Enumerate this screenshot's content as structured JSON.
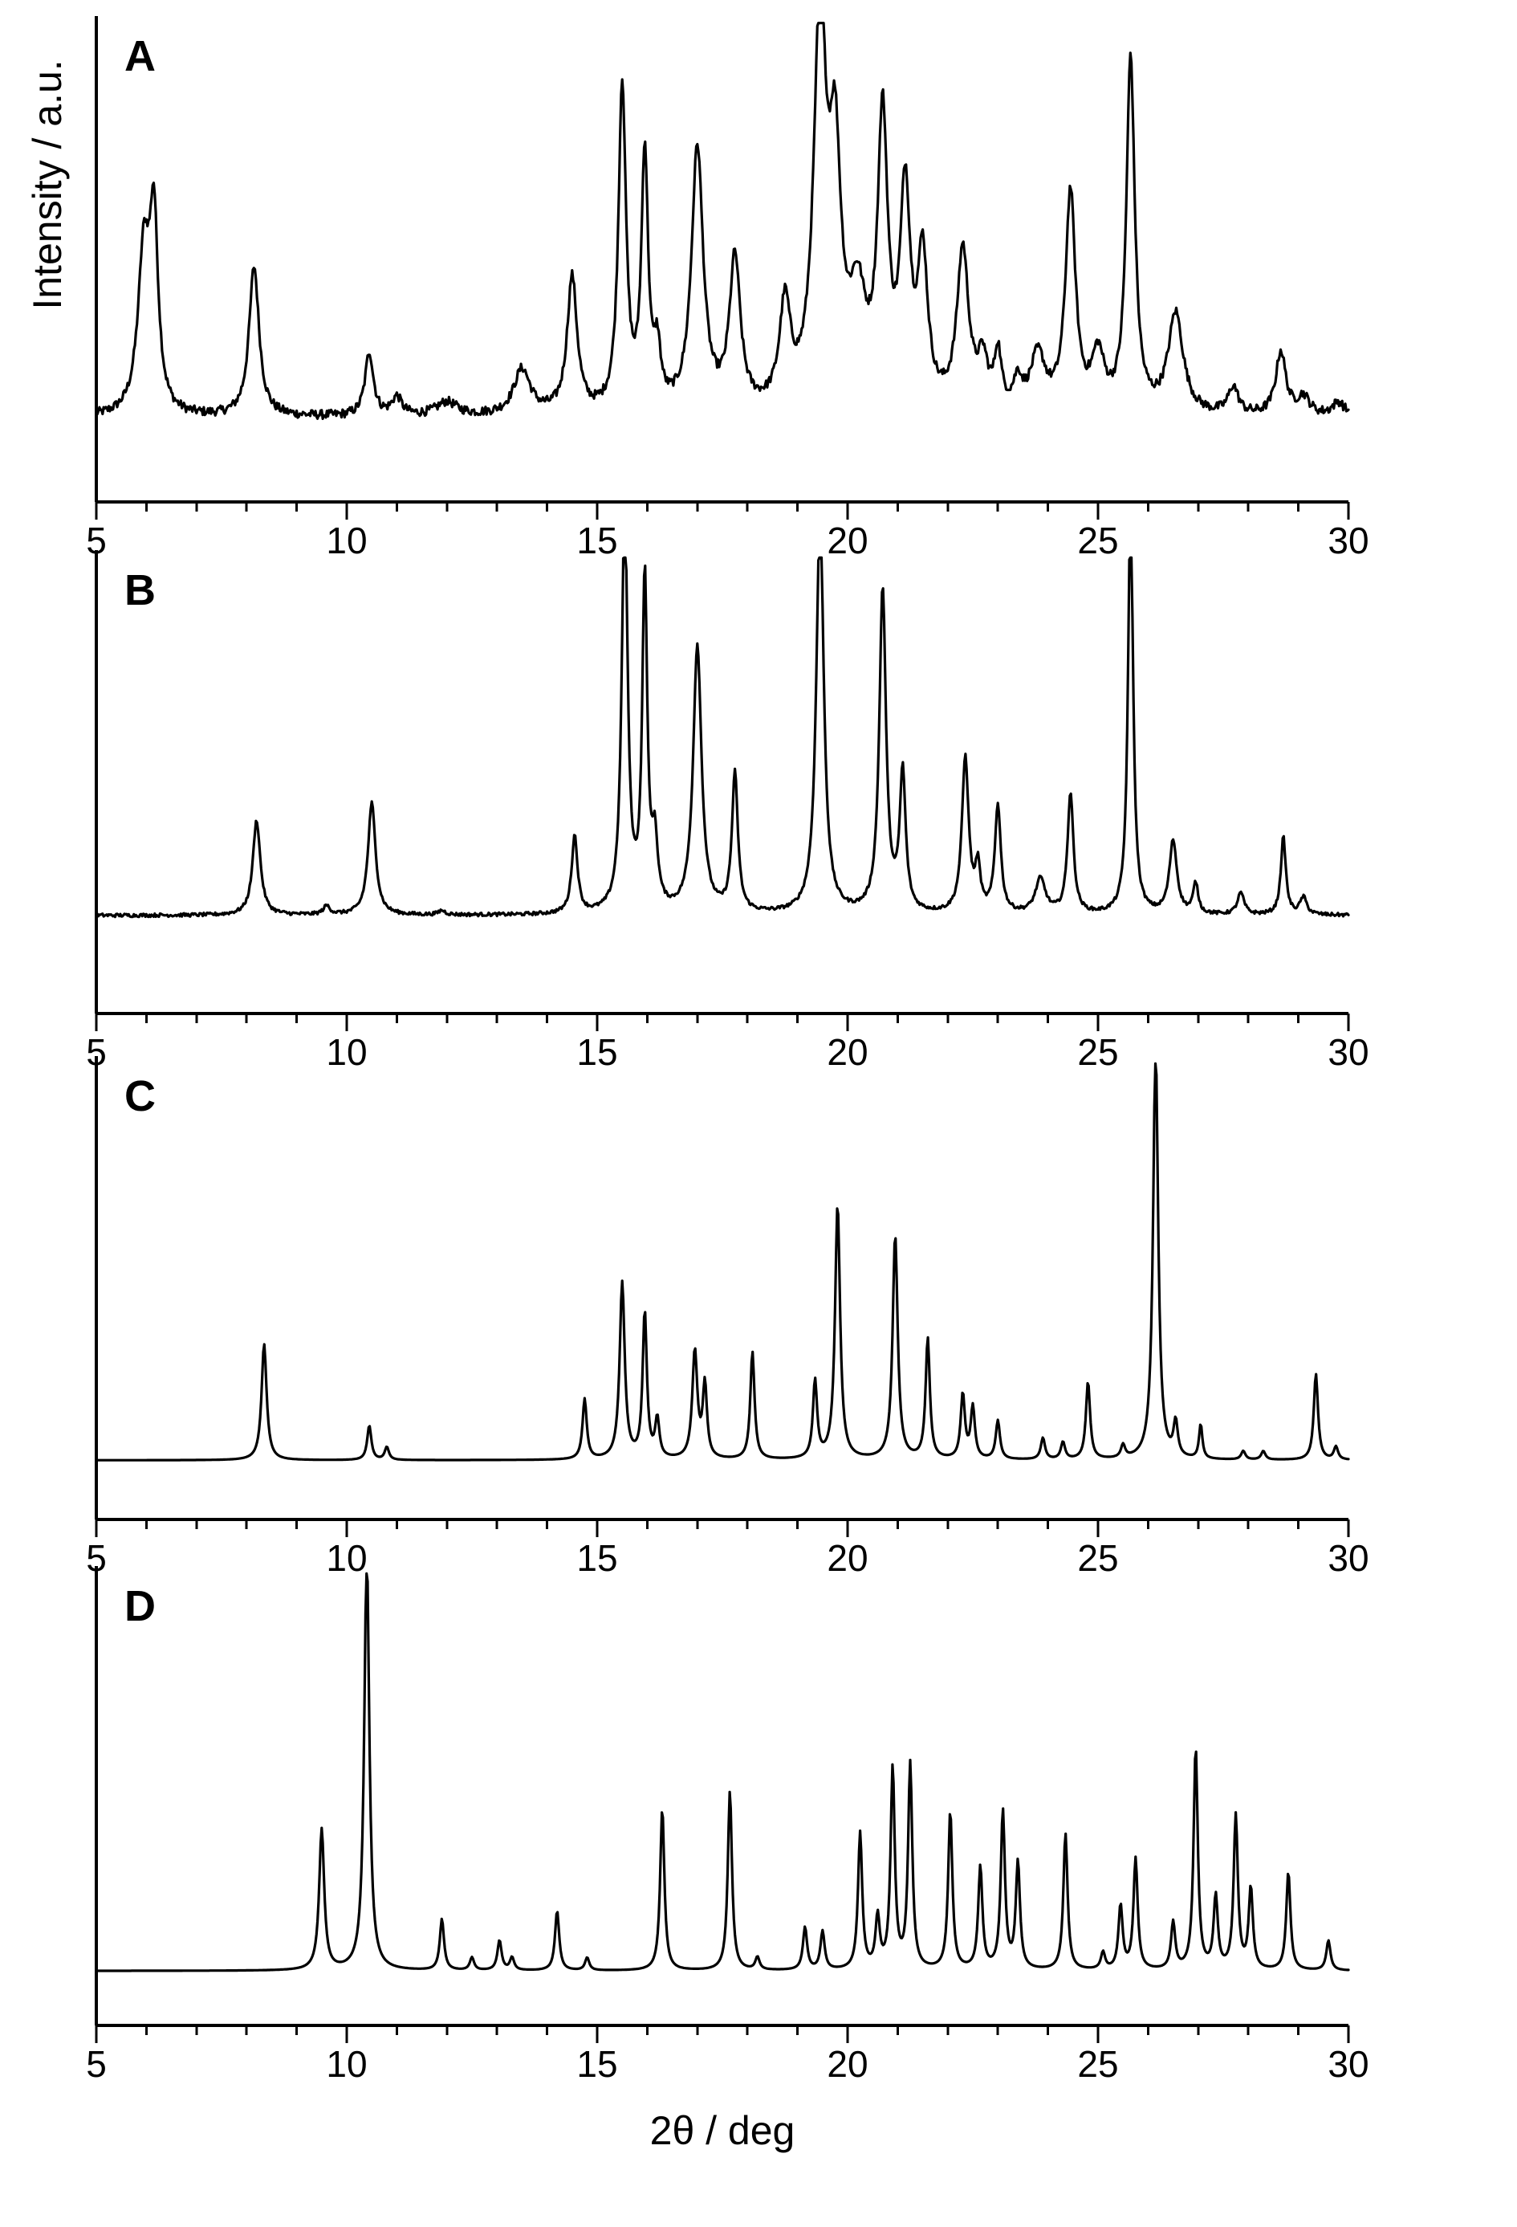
{
  "chart_data": [
    {
      "type": "line",
      "panel": "A",
      "xlim": [
        5,
        30
      ],
      "xticks": [
        5,
        10,
        15,
        20,
        25,
        30
      ],
      "xlabel": "",
      "ylabel": "Intensity / a.u.",
      "baseline": 0.15,
      "noise": 0.01,
      "peaks": [
        {
          "x": 5.95,
          "h": 0.35,
          "w": 0.14
        },
        {
          "x": 6.15,
          "h": 0.4,
          "w": 0.1
        },
        {
          "x": 8.15,
          "h": 0.33,
          "w": 0.12
        },
        {
          "x": 10.45,
          "h": 0.14,
          "w": 0.1
        },
        {
          "x": 11.0,
          "h": 0.04,
          "w": 0.12
        },
        {
          "x": 12.0,
          "h": 0.03,
          "w": 0.25
        },
        {
          "x": 13.5,
          "h": 0.1,
          "w": 0.2
        },
        {
          "x": 14.5,
          "h": 0.3,
          "w": 0.12
        },
        {
          "x": 15.5,
          "h": 0.72,
          "w": 0.09
        },
        {
          "x": 15.95,
          "h": 0.56,
          "w": 0.08
        },
        {
          "x": 16.2,
          "h": 0.12,
          "w": 0.08
        },
        {
          "x": 17.0,
          "h": 0.58,
          "w": 0.14
        },
        {
          "x": 17.75,
          "h": 0.33,
          "w": 0.13
        },
        {
          "x": 18.75,
          "h": 0.22,
          "w": 0.13
        },
        {
          "x": 19.45,
          "h": 0.85,
          "w": 0.15
        },
        {
          "x": 19.75,
          "h": 0.5,
          "w": 0.14
        },
        {
          "x": 20.2,
          "h": 0.22,
          "w": 0.2
        },
        {
          "x": 20.7,
          "h": 0.62,
          "w": 0.12
        },
        {
          "x": 21.15,
          "h": 0.46,
          "w": 0.12
        },
        {
          "x": 21.5,
          "h": 0.32,
          "w": 0.12
        },
        {
          "x": 22.3,
          "h": 0.35,
          "w": 0.14
        },
        {
          "x": 22.7,
          "h": 0.1,
          "w": 0.12
        },
        {
          "x": 23.0,
          "h": 0.12,
          "w": 0.08
        },
        {
          "x": 23.4,
          "h": 0.06,
          "w": 0.1
        },
        {
          "x": 23.8,
          "h": 0.12,
          "w": 0.18
        },
        {
          "x": 24.45,
          "h": 0.48,
          "w": 0.12
        },
        {
          "x": 25.0,
          "h": 0.12,
          "w": 0.15
        },
        {
          "x": 25.65,
          "h": 0.78,
          "w": 0.1
        },
        {
          "x": 26.55,
          "h": 0.22,
          "w": 0.18
        },
        {
          "x": 27.7,
          "h": 0.06,
          "w": 0.12
        },
        {
          "x": 28.65,
          "h": 0.14,
          "w": 0.12
        },
        {
          "x": 29.1,
          "h": 0.04,
          "w": 0.15
        },
        {
          "x": 29.8,
          "h": 0.03,
          "w": 0.15
        }
      ]
    },
    {
      "type": "line",
      "panel": "B",
      "xlim": [
        5,
        30
      ],
      "xticks": [
        5,
        10,
        15,
        20,
        25,
        30
      ],
      "xlabel": "",
      "ylabel": "",
      "baseline": 0.19,
      "noise": 0.004,
      "peaks": [
        {
          "x": 8.2,
          "h": 0.22,
          "w": 0.09
        },
        {
          "x": 9.6,
          "h": 0.02,
          "w": 0.08
        },
        {
          "x": 10.5,
          "h": 0.26,
          "w": 0.09
        },
        {
          "x": 11.9,
          "h": 0.01,
          "w": 0.08
        },
        {
          "x": 14.55,
          "h": 0.18,
          "w": 0.07
        },
        {
          "x": 15.55,
          "h": 0.95,
          "w": 0.07
        },
        {
          "x": 15.95,
          "h": 0.77,
          "w": 0.06
        },
        {
          "x": 16.15,
          "h": 0.15,
          "w": 0.07
        },
        {
          "x": 17.0,
          "h": 0.62,
          "w": 0.1
        },
        {
          "x": 17.75,
          "h": 0.32,
          "w": 0.07
        },
        {
          "x": 19.45,
          "h": 0.93,
          "w": 0.09
        },
        {
          "x": 20.7,
          "h": 0.75,
          "w": 0.08
        },
        {
          "x": 21.1,
          "h": 0.32,
          "w": 0.07
        },
        {
          "x": 22.35,
          "h": 0.36,
          "w": 0.08
        },
        {
          "x": 22.6,
          "h": 0.1,
          "w": 0.06
        },
        {
          "x": 23.0,
          "h": 0.25,
          "w": 0.07
        },
        {
          "x": 23.85,
          "h": 0.08,
          "w": 0.12
        },
        {
          "x": 24.45,
          "h": 0.28,
          "w": 0.07
        },
        {
          "x": 25.65,
          "h": 0.96,
          "w": 0.06
        },
        {
          "x": 26.5,
          "h": 0.17,
          "w": 0.09
        },
        {
          "x": 26.95,
          "h": 0.07,
          "w": 0.06
        },
        {
          "x": 27.85,
          "h": 0.05,
          "w": 0.08
        },
        {
          "x": 28.7,
          "h": 0.18,
          "w": 0.06
        },
        {
          "x": 29.1,
          "h": 0.04,
          "w": 0.08
        }
      ]
    },
    {
      "type": "line",
      "panel": "C",
      "xlim": [
        5,
        30
      ],
      "xticks": [
        5,
        10,
        15,
        20,
        25,
        30
      ],
      "xlabel": "",
      "ylabel": "",
      "baseline": 0.1,
      "noise": 0,
      "peaks": [
        {
          "x": 8.35,
          "h": 0.27,
          "w": 0.06
        },
        {
          "x": 10.45,
          "h": 0.08,
          "w": 0.05
        },
        {
          "x": 10.8,
          "h": 0.03,
          "w": 0.05
        },
        {
          "x": 14.75,
          "h": 0.14,
          "w": 0.05
        },
        {
          "x": 15.5,
          "h": 0.41,
          "w": 0.06
        },
        {
          "x": 15.95,
          "h": 0.34,
          "w": 0.05
        },
        {
          "x": 16.2,
          "h": 0.09,
          "w": 0.05
        },
        {
          "x": 16.95,
          "h": 0.25,
          "w": 0.06
        },
        {
          "x": 17.15,
          "h": 0.17,
          "w": 0.05
        },
        {
          "x": 18.1,
          "h": 0.25,
          "w": 0.05
        },
        {
          "x": 19.35,
          "h": 0.18,
          "w": 0.05
        },
        {
          "x": 19.8,
          "h": 0.59,
          "w": 0.06
        },
        {
          "x": 20.95,
          "h": 0.52,
          "w": 0.06
        },
        {
          "x": 21.6,
          "h": 0.28,
          "w": 0.05
        },
        {
          "x": 22.3,
          "h": 0.15,
          "w": 0.05
        },
        {
          "x": 22.5,
          "h": 0.12,
          "w": 0.05
        },
        {
          "x": 23.0,
          "h": 0.09,
          "w": 0.05
        },
        {
          "x": 23.9,
          "h": 0.05,
          "w": 0.05
        },
        {
          "x": 24.3,
          "h": 0.04,
          "w": 0.05
        },
        {
          "x": 24.8,
          "h": 0.18,
          "w": 0.05
        },
        {
          "x": 25.5,
          "h": 0.03,
          "w": 0.05
        },
        {
          "x": 26.15,
          "h": 0.96,
          "w": 0.06
        },
        {
          "x": 26.55,
          "h": 0.08,
          "w": 0.05
        },
        {
          "x": 27.05,
          "h": 0.08,
          "w": 0.04
        },
        {
          "x": 27.9,
          "h": 0.02,
          "w": 0.05
        },
        {
          "x": 28.3,
          "h": 0.02,
          "w": 0.05
        },
        {
          "x": 29.35,
          "h": 0.2,
          "w": 0.05
        },
        {
          "x": 29.75,
          "h": 0.03,
          "w": 0.05
        }
      ]
    },
    {
      "type": "line",
      "panel": "D",
      "xlim": [
        5,
        30
      ],
      "xticks": [
        5,
        10,
        15,
        20,
        25,
        30
      ],
      "xlabel": "2θ / deg",
      "ylabel": "",
      "baseline": 0.09,
      "noise": 0,
      "peaks": [
        {
          "x": 9.5,
          "h": 0.33,
          "w": 0.06
        },
        {
          "x": 10.4,
          "h": 0.98,
          "w": 0.06
        },
        {
          "x": 11.9,
          "h": 0.12,
          "w": 0.05
        },
        {
          "x": 12.5,
          "h": 0.03,
          "w": 0.05
        },
        {
          "x": 13.05,
          "h": 0.07,
          "w": 0.05
        },
        {
          "x": 13.3,
          "h": 0.03,
          "w": 0.05
        },
        {
          "x": 14.2,
          "h": 0.14,
          "w": 0.05
        },
        {
          "x": 14.8,
          "h": 0.03,
          "w": 0.05
        },
        {
          "x": 16.3,
          "h": 0.38,
          "w": 0.05
        },
        {
          "x": 17.65,
          "h": 0.42,
          "w": 0.05
        },
        {
          "x": 18.2,
          "h": 0.03,
          "w": 0.05
        },
        {
          "x": 19.15,
          "h": 0.1,
          "w": 0.05
        },
        {
          "x": 19.5,
          "h": 0.09,
          "w": 0.05
        },
        {
          "x": 20.25,
          "h": 0.32,
          "w": 0.05
        },
        {
          "x": 20.6,
          "h": 0.12,
          "w": 0.05
        },
        {
          "x": 20.9,
          "h": 0.47,
          "w": 0.05
        },
        {
          "x": 21.25,
          "h": 0.48,
          "w": 0.05
        },
        {
          "x": 22.05,
          "h": 0.37,
          "w": 0.05
        },
        {
          "x": 22.65,
          "h": 0.24,
          "w": 0.05
        },
        {
          "x": 23.1,
          "h": 0.37,
          "w": 0.05
        },
        {
          "x": 23.4,
          "h": 0.25,
          "w": 0.05
        },
        {
          "x": 24.35,
          "h": 0.32,
          "w": 0.05
        },
        {
          "x": 25.1,
          "h": 0.04,
          "w": 0.05
        },
        {
          "x": 25.45,
          "h": 0.15,
          "w": 0.05
        },
        {
          "x": 25.75,
          "h": 0.26,
          "w": 0.05
        },
        {
          "x": 26.5,
          "h": 0.11,
          "w": 0.05
        },
        {
          "x": 26.95,
          "h": 0.52,
          "w": 0.05
        },
        {
          "x": 27.35,
          "h": 0.17,
          "w": 0.05
        },
        {
          "x": 27.75,
          "h": 0.36,
          "w": 0.05
        },
        {
          "x": 28.05,
          "h": 0.19,
          "w": 0.05
        },
        {
          "x": 28.8,
          "h": 0.23,
          "w": 0.05
        },
        {
          "x": 29.6,
          "h": 0.07,
          "w": 0.05
        }
      ]
    }
  ]
}
